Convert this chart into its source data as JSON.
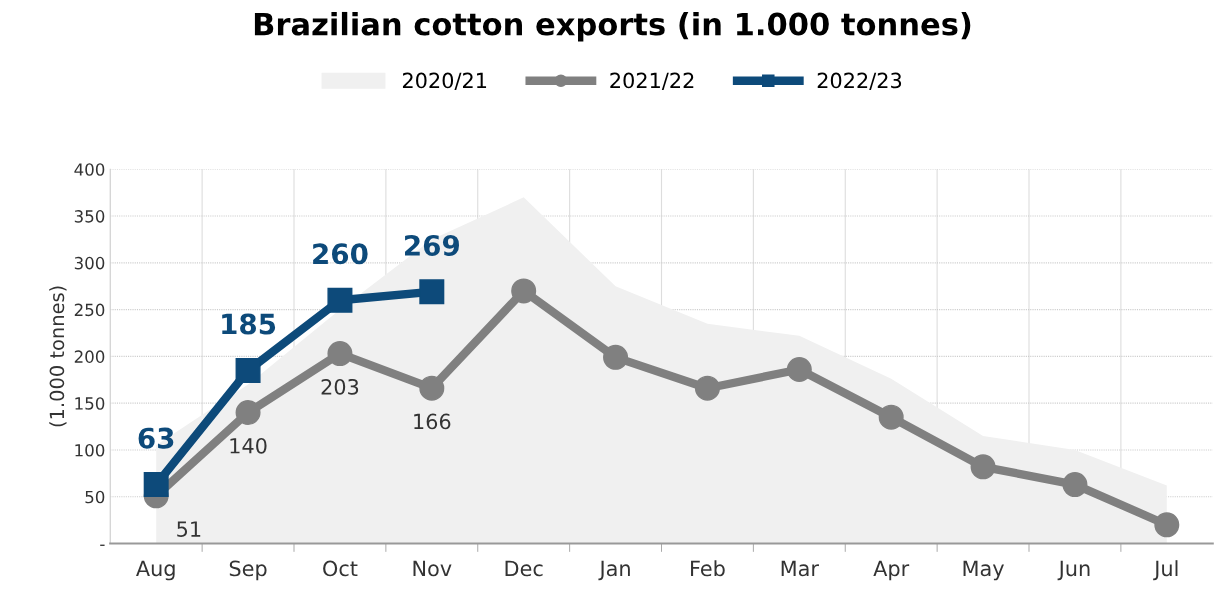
{
  "chart_data": {
    "type": "line",
    "title": "Brazilian cotton exports (in 1.000 tonnes)",
    "ylabel": "(1.000 tonnes)",
    "categories": [
      "Aug",
      "Sep",
      "Oct",
      "Nov",
      "Dec",
      "Jan",
      "Feb",
      "Mar",
      "Apr",
      "May",
      "Jun",
      "Jul"
    ],
    "series": [
      {
        "name": "2020/21",
        "type": "area",
        "color": "#f0f0f0",
        "values": [
          105,
          170,
          250,
          325,
          370,
          275,
          235,
          222,
          176,
          115,
          100,
          62
        ]
      },
      {
        "name": "2021/22",
        "color": "#808080",
        "marker": "circle",
        "values": [
          51,
          140,
          203,
          166,
          270,
          199,
          166,
          186,
          135,
          82,
          63,
          20
        ],
        "value_labels": [
          "51",
          "140",
          "203",
          "166",
          null,
          null,
          null,
          null,
          null,
          null,
          null,
          null
        ]
      },
      {
        "name": "2022/23",
        "color": "#0d4a7a",
        "marker": "square",
        "values": [
          63,
          185,
          260,
          269,
          null,
          null,
          null,
          null,
          null,
          null,
          null,
          null
        ],
        "value_labels": [
          "63",
          "185",
          "260",
          "269",
          null,
          null,
          null,
          null,
          null,
          null,
          null,
          null
        ]
      }
    ],
    "ylim": [
      0,
      400
    ],
    "yticks": [
      {
        "value": 0,
        "label": "-"
      },
      50,
      100,
      150,
      200,
      250,
      300,
      350,
      400
    ],
    "grid": true,
    "legend": "top"
  }
}
